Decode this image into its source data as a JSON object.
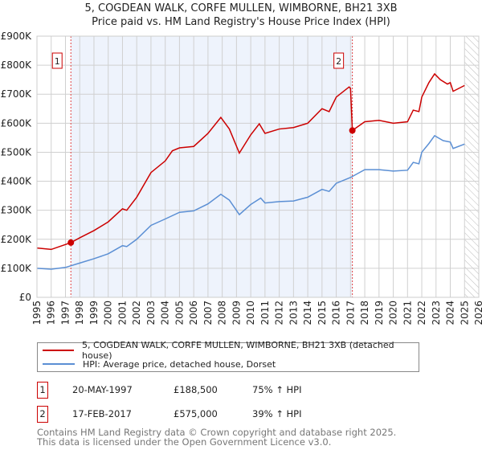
{
  "title": "5, COGDEAN WALK, CORFE MULLEN, WIMBORNE, BH21 3XB",
  "subtitle": "Price paid vs. HM Land Registry's House Price Index (HPI)",
  "colors": {
    "property": "#cc0000",
    "hpi": "#5b8fd4",
    "shade": "#eef3fc"
  },
  "chart_data": {
    "type": "line",
    "xlim": [
      1995,
      2026
    ],
    "ylim": [
      0,
      900000
    ],
    "x_ticks": [
      "1995",
      "1996",
      "1997",
      "1998",
      "1999",
      "2000",
      "2001",
      "2002",
      "2003",
      "2004",
      "2005",
      "2006",
      "2007",
      "2008",
      "2009",
      "2010",
      "2011",
      "2012",
      "2013",
      "2014",
      "2015",
      "2016",
      "2017",
      "2018",
      "2019",
      "2020",
      "2021",
      "2022",
      "2023",
      "2024",
      "2025",
      "2026"
    ],
    "y_ticks": [
      {
        "value": 0,
        "label": "£0"
      },
      {
        "value": 100000,
        "label": "£100K"
      },
      {
        "value": 200000,
        "label": "£200K"
      },
      {
        "value": 300000,
        "label": "£300K"
      },
      {
        "value": 400000,
        "label": "£400K"
      },
      {
        "value": 500000,
        "label": "£500K"
      },
      {
        "value": 600000,
        "label": "£600K"
      },
      {
        "value": 700000,
        "label": "£700K"
      },
      {
        "value": 800000,
        "label": "£800K"
      },
      {
        "value": 900000,
        "label": "£900K"
      }
    ],
    "shaded_range": [
      1997.38,
      2017.13
    ],
    "forecast_from": 2025.0,
    "series": [
      {
        "name": "5, COGDEAN WALK, CORFE MULLEN, WIMBORNE, BH21 3XB (detached house)",
        "color": "#cc0000",
        "x": [
          1995,
          1996,
          1997.38,
          1998,
          1999,
          2000,
          2001,
          2001.3,
          2002,
          2003,
          2004,
          2004.5,
          2005,
          2006,
          2007,
          2007.9,
          2008.5,
          2009.2,
          2010,
          2010.6,
          2011,
          2012,
          2013,
          2014,
          2015,
          2015.5,
          2016,
          2016.9,
          2017.0,
          2017.13,
          2018,
          2019,
          2020,
          2021,
          2021.4,
          2021.8,
          2022,
          2022.5,
          2022.9,
          2023.3,
          2023.8,
          2024,
          2024.2,
          2025
        ],
        "y": [
          170000,
          165000,
          188500,
          205000,
          230000,
          260000,
          305000,
          300000,
          345000,
          430000,
          470000,
          505000,
          515000,
          520000,
          565000,
          620000,
          580000,
          497000,
          560000,
          598000,
          565000,
          580000,
          585000,
          600000,
          650000,
          640000,
          690000,
          725000,
          720000,
          575000,
          605000,
          610000,
          600000,
          605000,
          645000,
          640000,
          690000,
          740000,
          770000,
          750000,
          735000,
          740000,
          710000,
          730000
        ]
      },
      {
        "name": "HPI: Average price, detached house, Dorset",
        "color": "#5b8fd4",
        "x": [
          1995,
          1996,
          1997,
          1998,
          1999,
          2000,
          2001,
          2001.3,
          2002,
          2003,
          2004,
          2005,
          2006,
          2007,
          2007.9,
          2008.5,
          2009.2,
          2010,
          2010.7,
          2011,
          2012,
          2013,
          2014,
          2015,
          2015.5,
          2016,
          2017,
          2018,
          2019,
          2020,
          2021,
          2021.4,
          2021.8,
          2022,
          2022.5,
          2022.9,
          2023.5,
          2024,
          2024.2,
          2025
        ],
        "y": [
          100000,
          97000,
          103000,
          118000,
          133000,
          150000,
          178000,
          175000,
          200000,
          248000,
          270000,
          293000,
          298000,
          322000,
          355000,
          335000,
          285000,
          320000,
          342000,
          325000,
          330000,
          332000,
          345000,
          372000,
          365000,
          393000,
          413000,
          440000,
          440000,
          435000,
          438000,
          465000,
          460000,
          500000,
          530000,
          557000,
          540000,
          535000,
          513000,
          528000
        ]
      }
    ],
    "sales": [
      {
        "label": "1",
        "x": 1997.38,
        "y": 188500,
        "date": "20-MAY-1997",
        "price": "£188,500",
        "hpi": "75% ↑ HPI"
      },
      {
        "label": "2",
        "x": 2017.13,
        "y": 575000,
        "date": "17-FEB-2017",
        "price": "£575,000",
        "hpi": "39% ↑ HPI"
      }
    ]
  },
  "legend": {
    "property": "5, COGDEAN WALK, CORFE MULLEN, WIMBORNE, BH21 3XB (detached house)",
    "hpi": "HPI: Average price, detached house, Dorset"
  },
  "footer": {
    "line1": "Contains HM Land Registry data © Crown copyright and database right 2025.",
    "line2": "This data is licensed under the Open Government Licence v3.0."
  }
}
